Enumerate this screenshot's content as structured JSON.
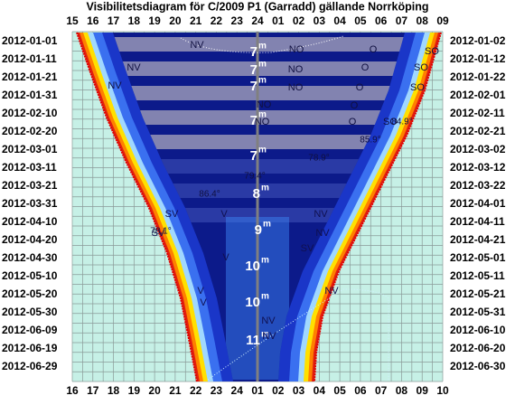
{
  "title": "Visibilitetsdiagram för C/2009 P1 (Garradd) gällande Norrköping",
  "top_hours": [
    "15",
    "16",
    "17",
    "18",
    "19",
    "20",
    "21",
    "22",
    "23",
    "24",
    "01",
    "02",
    "03",
    "04",
    "05",
    "06",
    "07",
    "08",
    "09"
  ],
  "bottom_hours": [
    "16",
    "17",
    "18",
    "19",
    "20",
    "21",
    "22",
    "23",
    "24",
    "01",
    "02",
    "03",
    "04",
    "05",
    "06",
    "07",
    "08",
    "09",
    "10"
  ],
  "left_dates": [
    "2012-01-01",
    "2012-01-11",
    "2012-01-21",
    "2012-01-31",
    "2012-02-10",
    "2012-02-20",
    "2012-03-01",
    "2012-03-11",
    "2012-03-21",
    "2012-03-31",
    "2012-04-10",
    "2012-04-20",
    "2012-04-30",
    "2012-05-10",
    "2012-05-20",
    "2012-05-30",
    "2012-06-09",
    "2012-06-19",
    "2012-06-29"
  ],
  "right_dates": [
    "2012-01-02",
    "2012-01-12",
    "2012-01-22",
    "2012-02-01",
    "2012-02-11",
    "2012-02-21",
    "2012-03-02",
    "2012-03-12",
    "2012-03-22",
    "2012-04-01",
    "2012-04-11",
    "2012-04-21",
    "2012-05-01",
    "2012-05-11",
    "2012-05-21",
    "2012-05-31",
    "2012-06-10",
    "2012-06-20",
    "2012-06-30"
  ],
  "magnitude_unit": "m",
  "magnitudes": [
    "7",
    "7",
    "7",
    "7",
    "7",
    "8",
    "9",
    "10",
    "10",
    "11"
  ],
  "directions": [
    "NV",
    "NO",
    "O",
    "SO",
    "NV",
    "NO",
    "O",
    "SO",
    "NV",
    "NO",
    "O",
    "SO",
    "NO",
    "O",
    "NO",
    "O",
    "SO",
    "SV",
    "V",
    "NV",
    "SV",
    "V",
    "NV",
    "SV",
    "V",
    "NV",
    "V",
    "NV",
    "NV"
  ],
  "altitudes": [
    "84.9°",
    "85.9°",
    "78.9°",
    "79.4°",
    "86.4°",
    "78.1°"
  ]
}
